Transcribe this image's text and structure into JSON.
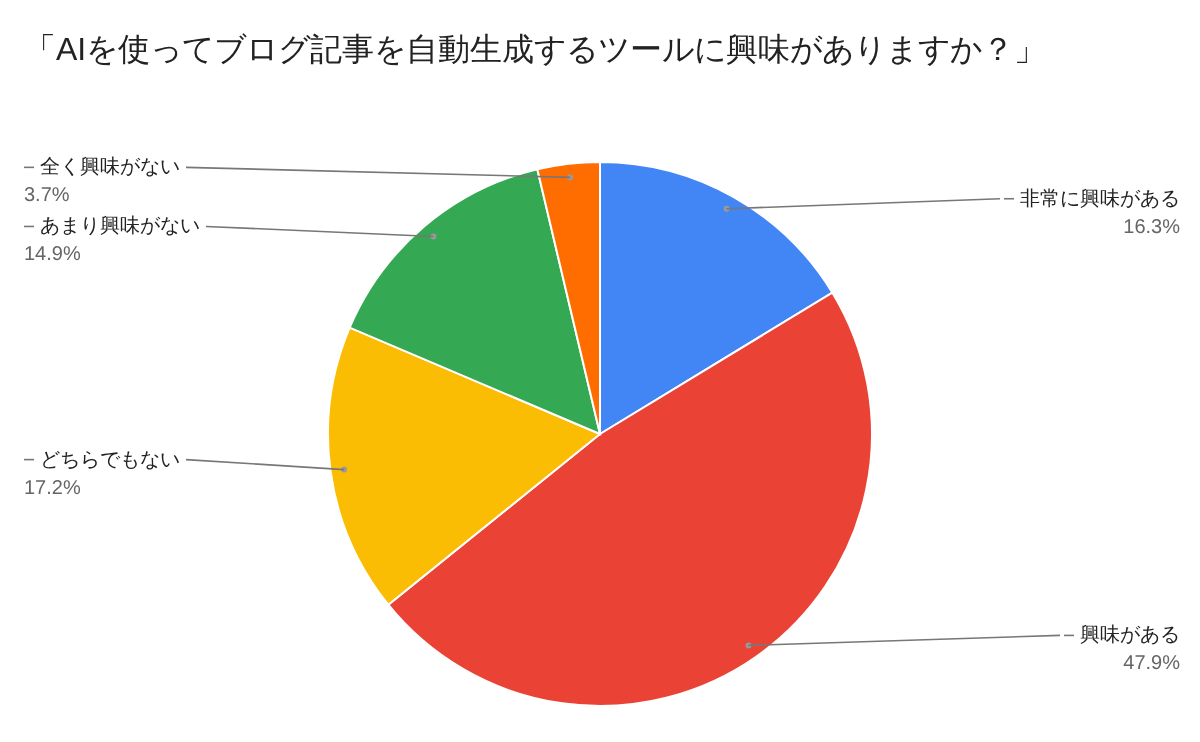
{
  "chart_data": {
    "type": "pie",
    "title": "「AIを使ってブログ記事を自動生成するツールに興味がありますか？」",
    "categories": [
      "非常に興味がある",
      "興味がある",
      "どちらでもない",
      "あまり興味がない",
      "全く興味がない"
    ],
    "values": [
      16.3,
      47.9,
      17.2,
      14.9,
      3.7
    ],
    "colors": [
      "#4285f4",
      "#ea4335",
      "#fbbc04",
      "#34a853",
      "#ff6d01"
    ],
    "value_labels": [
      "16.3%",
      "47.9%",
      "17.2%",
      "14.9%",
      "3.7%"
    ]
  }
}
